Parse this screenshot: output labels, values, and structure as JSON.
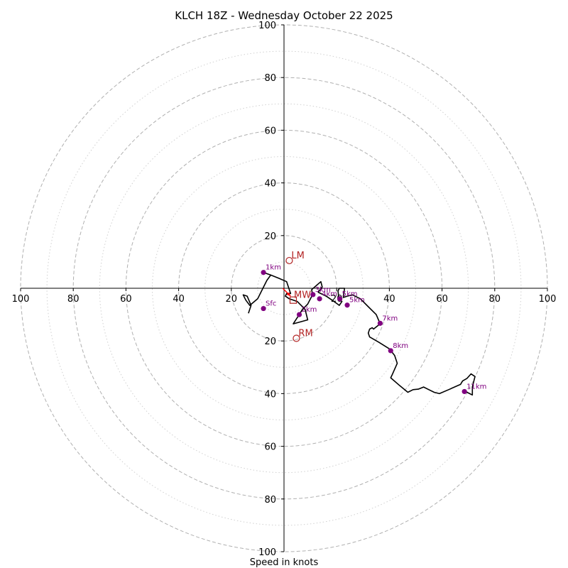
{
  "chart_data": {
    "type": "hodograph",
    "title": "KLCH 18Z - Wednesday October 22 2025",
    "xlabel": "Speed in knots",
    "range": [
      -100,
      100
    ],
    "ring_major": [
      20,
      40,
      60,
      80,
      100
    ],
    "ring_minor": [
      10,
      30,
      50,
      70,
      90
    ],
    "tick_values": [
      100,
      80,
      60,
      40,
      20
    ],
    "colors": {
      "trace": "#000000",
      "height_marker": "#800080",
      "motion": "#b22222",
      "mean_wind_arrow": "#ff0000",
      "grid": "#b0b0b0"
    },
    "trace": [
      [
        -13.5,
        -9.5
      ],
      [
        -12.5,
        -6.5
      ],
      [
        -14.0,
        -3.0
      ],
      [
        -15.5,
        -2.5
      ],
      [
        -14.5,
        -4.5
      ],
      [
        -13.0,
        -6.5
      ],
      [
        -10.0,
        -4.0
      ],
      [
        -8.0,
        0.0
      ],
      [
        -6.5,
        3.0
      ],
      [
        -5.0,
        5.0
      ],
      [
        -7.8,
        6.0
      ],
      [
        -5.0,
        5.0
      ],
      [
        -2.0,
        3.8
      ],
      [
        1.0,
        2.5
      ],
      [
        2.5,
        -2.0
      ],
      [
        1.0,
        -2.0
      ],
      [
        0.5,
        -3.0
      ],
      [
        2.0,
        -4.0
      ],
      [
        5.0,
        -5.0
      ],
      [
        8.0,
        -8.0
      ],
      [
        9.0,
        -12.0
      ],
      [
        3.5,
        -13.5
      ],
      [
        5.8,
        -10.0
      ],
      [
        7.0,
        -8.0
      ],
      [
        9.0,
        -6.0
      ],
      [
        10.8,
        -2.5
      ],
      [
        10.5,
        -0.5
      ],
      [
        14.0,
        2.5
      ],
      [
        14.5,
        0.5
      ],
      [
        13.0,
        -1.5
      ],
      [
        16.0,
        -3.0
      ],
      [
        17.5,
        -4.0
      ],
      [
        19.0,
        -5.0
      ],
      [
        21.0,
        -6.5
      ],
      [
        22.0,
        -5.0
      ],
      [
        20.8,
        -4.0
      ],
      [
        20.5,
        -1.0
      ],
      [
        21.0,
        0.0
      ],
      [
        23.0,
        0.0
      ],
      [
        22.5,
        -3.5
      ],
      [
        24.0,
        -3.0
      ],
      [
        26.0,
        -2.5
      ],
      [
        29.0,
        -4.0
      ],
      [
        32.0,
        -7.0
      ],
      [
        35.0,
        -10.0
      ],
      [
        36.5,
        -13.5
      ],
      [
        34.0,
        -15.5
      ],
      [
        33.5,
        -15.0
      ],
      [
        32.5,
        -15.5
      ],
      [
        32.0,
        -17.0
      ],
      [
        32.5,
        -18.5
      ],
      [
        36.0,
        -20.5
      ],
      [
        40.0,
        -23.0
      ],
      [
        42.0,
        -25.5
      ],
      [
        43.0,
        -28.5
      ],
      [
        41.0,
        -33.0
      ],
      [
        40.5,
        -34.0
      ],
      [
        44.0,
        -37.0
      ],
      [
        47.0,
        -39.5
      ],
      [
        49.0,
        -38.5
      ],
      [
        51.0,
        -38.3
      ],
      [
        53.0,
        -37.5
      ],
      [
        55.0,
        -38.5
      ],
      [
        57.0,
        -39.5
      ],
      [
        59.0,
        -40.0
      ],
      [
        62.5,
        -38.5
      ],
      [
        67.0,
        -36.5
      ],
      [
        67.8,
        -35.2
      ],
      [
        69.5,
        -34.2
      ],
      [
        71.0,
        -32.5
      ],
      [
        72.5,
        -33.5
      ],
      [
        71.5,
        -37.5
      ],
      [
        71.5,
        -40.5
      ],
      [
        69.5,
        -39.5
      ],
      [
        68.5,
        -39.2
      ]
    ],
    "height_markers": [
      {
        "label": "Sfc",
        "u": -7.8,
        "v": -7.7
      },
      {
        "label": "1km",
        "u": -7.8,
        "v": 6.0
      },
      {
        "label": "2km",
        "u": 5.8,
        "v": -10.0
      },
      {
        "label": "3km",
        "u": 11.0,
        "v": -2.4
      },
      {
        "label": "4km",
        "u": 13.5,
        "v": -4.0
      },
      {
        "label": "5km",
        "u": 21.2,
        "v": -4.0
      },
      {
        "label": "5km",
        "u": 24.0,
        "v": -6.4
      },
      {
        "label": "7km",
        "u": 36.5,
        "v": -13.3
      },
      {
        "label": "8km",
        "u": 40.5,
        "v": -23.7
      },
      {
        "label": "11km",
        "u": 68.5,
        "v": -39.2
      }
    ],
    "storm_motion": [
      {
        "label": "LM",
        "u": 2.0,
        "v": 10.5,
        "shape": "circle"
      },
      {
        "label": "RM",
        "u": 4.7,
        "v": -19.0,
        "shape": "circle"
      },
      {
        "label": "MW",
        "u": 3.5,
        "v": -4.5,
        "shape": "square"
      }
    ],
    "mean_wind_arrow": {
      "from": [
        -0.5,
        0.0
      ],
      "to": [
        2.5,
        -3.0
      ]
    }
  }
}
